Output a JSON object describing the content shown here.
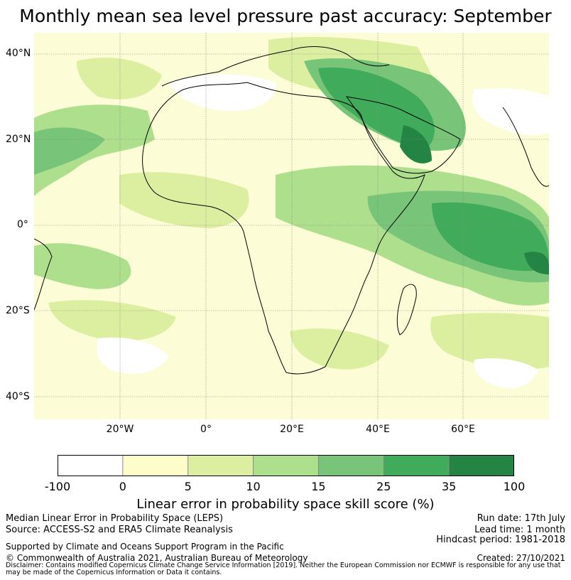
{
  "title": "Monthly mean sea level pressure past accuracy: September",
  "lat_labels": [
    "40°N",
    "20°N",
    "0°",
    "20°S",
    "40°S"
  ],
  "lon_labels": [
    "20°W",
    "0°",
    "20°E",
    "40°E",
    "60°E"
  ],
  "colorbar": {
    "ticks": [
      "-100",
      "0",
      "5",
      "10",
      "15",
      "25",
      "35",
      "100"
    ],
    "colors": [
      "#ffffff",
      "#fcfdc9",
      "#dcefa1",
      "#addf8c",
      "#78c579",
      "#41ab5c",
      "#238443"
    ],
    "title": "Linear error in probability space skill score (%)"
  },
  "info": {
    "left_line1": "Median Linear Error in Probability Space (LEPS)",
    "left_line2": "Source: ACCESS-S2 and ERA5 Climate Reanalysis",
    "left_line3": "Supported by Climate and Oceans Support Program in the Pacific",
    "left_line4": "© Commonwealth of Australia 2021, Australian Bureau of Meteorology",
    "right_line1": "Run date: 17th July",
    "right_line2": "Lead time: 1 month",
    "right_line3": "Hindcast period: 1981-2018",
    "right_line4": "Created: 27/10/2021",
    "disclaimer": "Disclaimer: Contains modified Copernicus Climate Change Service Information [2019]. Neither the European Commission nor ECMWF is responsible for any use that may be made of the Copernicus Information or Data it contains."
  }
}
